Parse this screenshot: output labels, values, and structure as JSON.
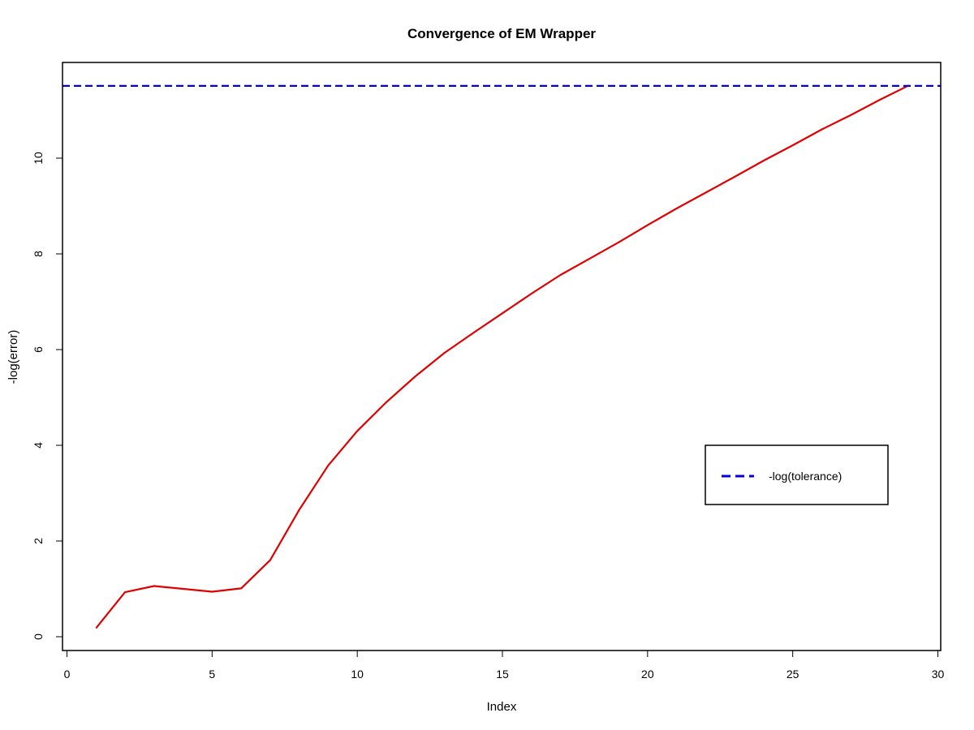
{
  "chart_data": {
    "type": "line",
    "title": "Convergence of EM Wrapper",
    "xlabel": "Index",
    "ylabel": "-log(error)",
    "xlim": [
      0,
      30
    ],
    "ylim": [
      0,
      11.8
    ],
    "xticks": [
      0,
      5,
      10,
      15,
      20,
      25,
      30
    ],
    "yticks": [
      0,
      2,
      4,
      6,
      8,
      10
    ],
    "grid": false,
    "legend_position": "right",
    "colors": {
      "series": "#e00000",
      "reference": "#0000e0",
      "frame": "#000000"
    },
    "series": [
      {
        "x": [
          1,
          2,
          3,
          4,
          5,
          6,
          7,
          8,
          9,
          10,
          11,
          12,
          13,
          14,
          15,
          16,
          17,
          18,
          19,
          20,
          21,
          22,
          23,
          24,
          25,
          26,
          27,
          28,
          29
        ],
        "values": [
          0.18,
          0.93,
          1.06,
          1.0,
          0.94,
          1.01,
          1.6,
          2.65,
          3.58,
          4.3,
          4.9,
          5.44,
          5.93,
          6.35,
          6.76,
          7.17,
          7.56,
          7.9,
          8.24,
          8.6,
          8.95,
          9.28,
          9.61,
          9.95,
          10.27,
          10.6,
          10.9,
          11.22,
          11.52
        ]
      }
    ],
    "reference_lines": [
      {
        "name": "-log(tolerance)",
        "y": 11.51,
        "style": "dashed"
      }
    ],
    "legend": [
      {
        "label": "-log(tolerance)",
        "style": "dashed",
        "color": "#0000e0"
      }
    ]
  }
}
